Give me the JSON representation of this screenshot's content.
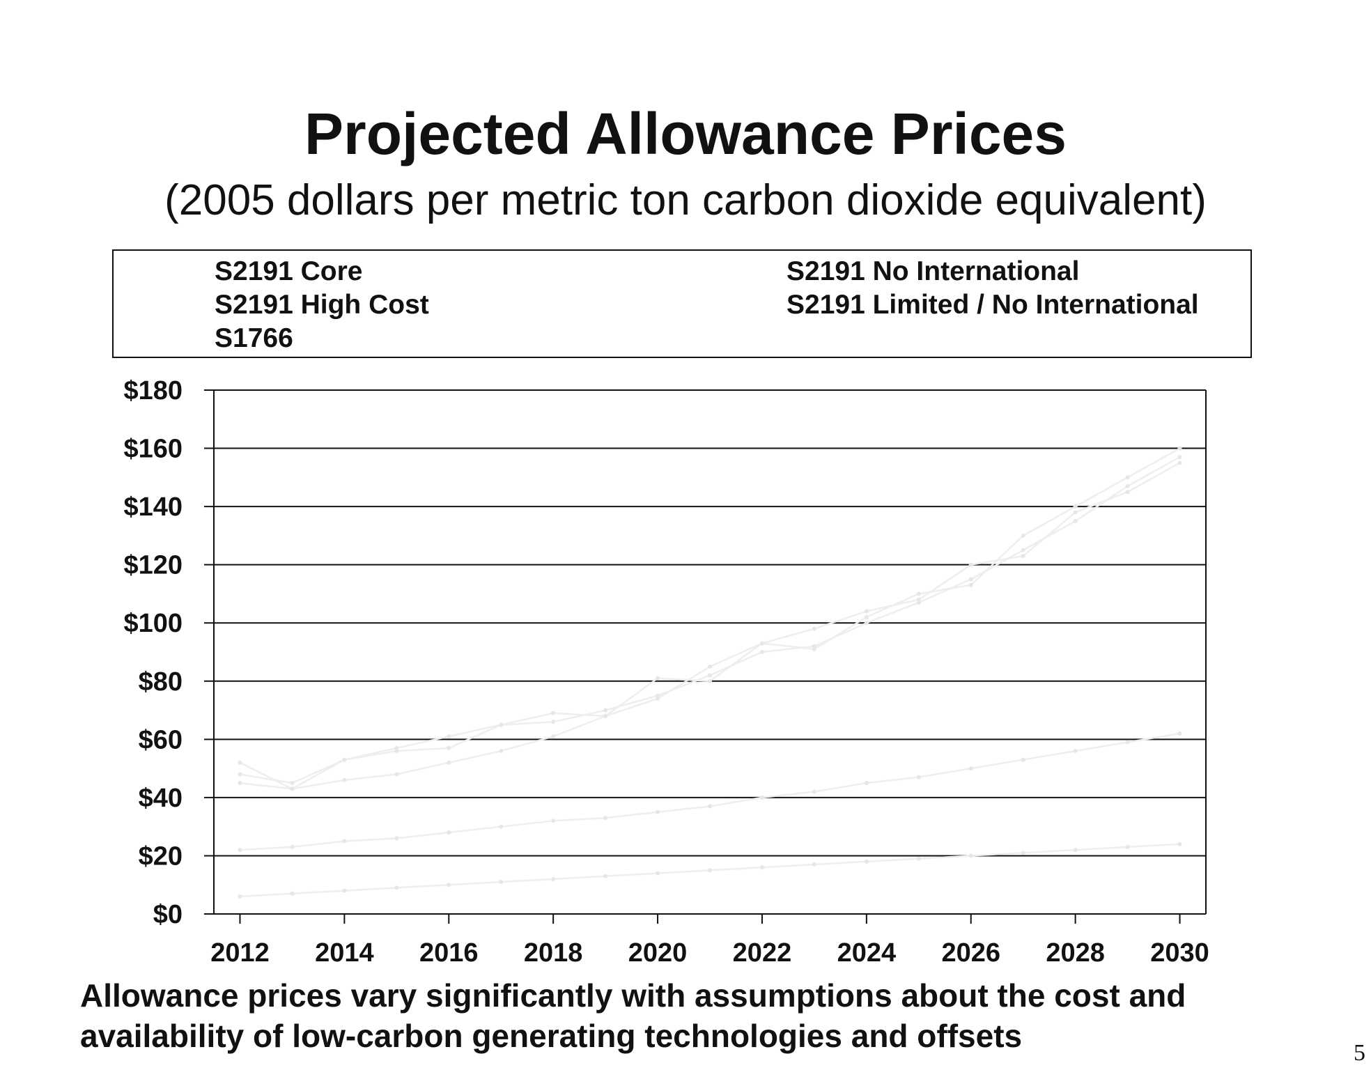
{
  "slide": {
    "title": "Projected Allowance Prices",
    "subtitle": "(2005 dollars per metric ton carbon dioxide equivalent)",
    "footer": "Allowance prices vary significantly with assumptions about the cost and availability of low-carbon generating technologies and offsets",
    "page_number": "5"
  },
  "legend": {
    "items": [
      {
        "label": "S2191 Core",
        "series": 0
      },
      {
        "label": "S2191 High Cost",
        "series": 1
      },
      {
        "label": "S1766",
        "series": 2
      },
      {
        "label": "S2191 No International",
        "series": 3
      },
      {
        "label": "S2191 Limited / No International",
        "series": 4
      }
    ]
  },
  "chart_data": {
    "type": "line",
    "title": "Projected Allowance Prices",
    "subtitle": "(2005 dollars per metric ton carbon dioxide equivalent)",
    "xlabel": "",
    "ylabel": "",
    "x": [
      2012,
      2013,
      2014,
      2015,
      2016,
      2017,
      2018,
      2019,
      2020,
      2021,
      2022,
      2023,
      2024,
      2025,
      2026,
      2027,
      2028,
      2029,
      2030
    ],
    "x_tick_labels": [
      "2012",
      "2014",
      "2016",
      "2018",
      "2020",
      "2022",
      "2024",
      "2026",
      "2028",
      "2030"
    ],
    "xlim": [
      2011.5,
      2030.5
    ],
    "ylim": [
      0,
      180
    ],
    "y_ticks": [
      0,
      20,
      40,
      60,
      80,
      100,
      120,
      140,
      160,
      180
    ],
    "y_tick_labels": [
      "$0",
      "$20",
      "$40",
      "$60",
      "$80",
      "$100",
      "$120",
      "$140",
      "$160",
      "$180"
    ],
    "grid": true,
    "legend_position": "top",
    "series": [
      {
        "name": "S2191 Core",
        "values": [
          22,
          23,
          25,
          26,
          28,
          30,
          32,
          33,
          35,
          37,
          40,
          42,
          45,
          47,
          50,
          53,
          56,
          59,
          62
        ]
      },
      {
        "name": "S2191 High Cost",
        "values": [
          48,
          45,
          53,
          56,
          57,
          65,
          66,
          70,
          75,
          82,
          90,
          92,
          100,
          107,
          115,
          125,
          135,
          147,
          157
        ]
      },
      {
        "name": "S1766",
        "values": [
          6,
          7,
          8,
          9,
          10,
          11,
          12,
          13,
          14,
          15,
          16,
          17,
          18,
          19,
          20,
          21,
          22,
          23,
          24
        ]
      },
      {
        "name": "S2191 No International",
        "values": [
          52,
          43,
          53,
          57,
          61,
          65,
          69,
          68,
          81,
          80,
          93,
          91,
          102,
          110,
          113,
          130,
          140,
          150,
          160
        ]
      },
      {
        "name": "S2191 Limited / No International",
        "values": [
          45,
          43,
          46,
          48,
          52,
          56,
          61,
          68,
          74,
          85,
          93,
          98,
          104,
          108,
          120,
          123,
          138,
          145,
          155
        ]
      }
    ]
  }
}
